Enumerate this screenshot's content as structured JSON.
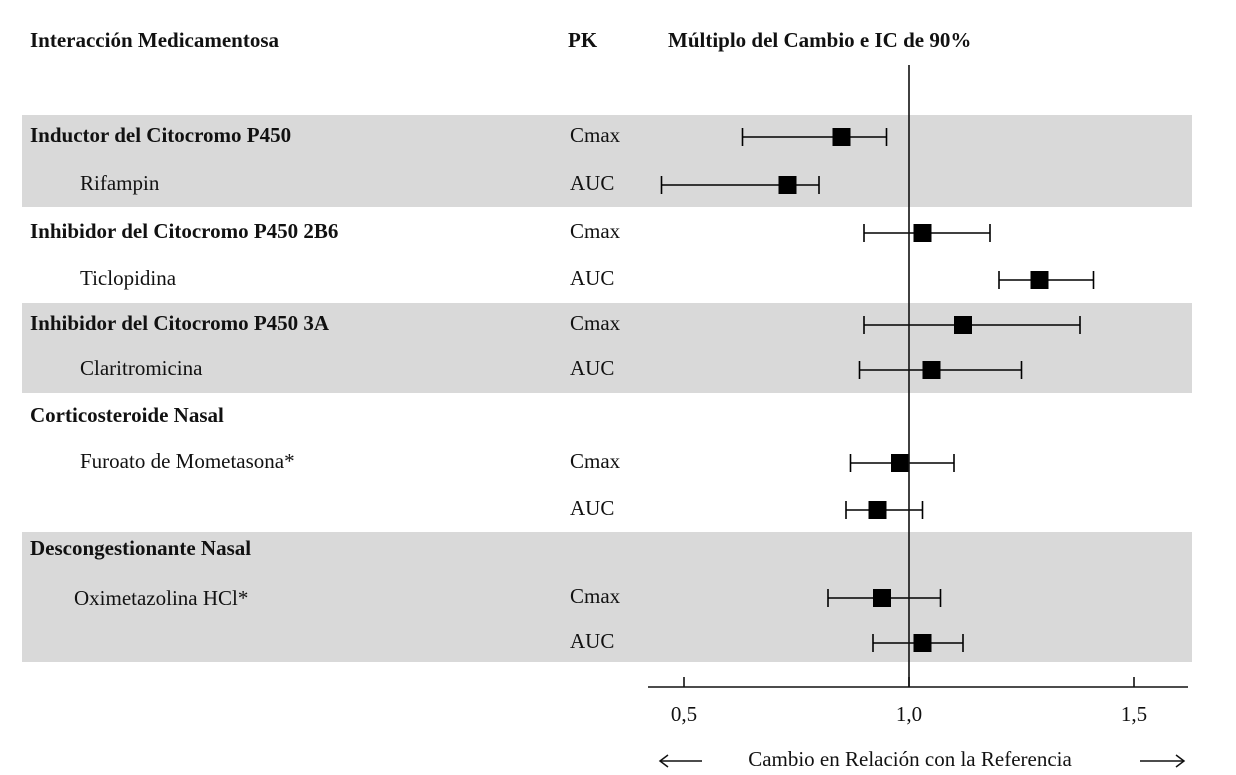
{
  "chart_data": {
    "type": "forest",
    "headers": [
      "Interacción Medicamentosa",
      "PK",
      "Múltiplo del Cambio e IC de 90%"
    ],
    "xlabel": "Cambio en Relación con la Referencia",
    "xlim": [
      0.42,
      1.62
    ],
    "xticks": [
      {
        "value": 0.5,
        "label": "0,5"
      },
      {
        "value": 1.0,
        "label": "1,0"
      },
      {
        "value": 1.5,
        "label": "1,5"
      }
    ],
    "reference_line": 1,
    "color": "#000000",
    "band_color": "#d9d9d9",
    "groups": [
      {
        "name": "Inductor del Citocromo P450",
        "drug": "Rifampin",
        "shaded": true,
        "pk": [
          "Cmax",
          "AUC"
        ],
        "values": [
          0.85,
          0.73
        ],
        "ci_low": [
          0.63,
          0.45
        ],
        "ci_high": [
          0.95,
          0.8
        ]
      },
      {
        "name": "Inhibidor del Citocromo P450 2B6",
        "drug": "Ticlopidina",
        "shaded": false,
        "pk": [
          "Cmax",
          "AUC"
        ],
        "values": [
          1.03,
          1.29
        ],
        "ci_low": [
          0.9,
          1.2
        ],
        "ci_high": [
          1.18,
          1.41
        ]
      },
      {
        "name": "Inhibidor del Citocromo P450 3A",
        "drug": "Claritromicina",
        "shaded": true,
        "pk": [
          "Cmax",
          "AUC"
        ],
        "values": [
          1.12,
          1.05
        ],
        "ci_low": [
          0.9,
          0.89
        ],
        "ci_high": [
          1.38,
          1.25
        ]
      },
      {
        "name": "Corticosteroide Nasal",
        "drug": "Furoato de Mometasona*",
        "shaded": false,
        "pk": [
          "Cmax",
          "AUC"
        ],
        "values": [
          0.98,
          0.93
        ],
        "ci_low": [
          0.87,
          0.86
        ],
        "ci_high": [
          1.1,
          1.03
        ]
      },
      {
        "name": "Descongestionante Nasal",
        "drug": "Oximetazolina HCl*",
        "shaded": true,
        "pk": [
          "Cmax",
          "AUC"
        ],
        "values": [
          0.94,
          1.03
        ],
        "ci_low": [
          0.82,
          0.92
        ],
        "ci_high": [
          1.07,
          1.12
        ]
      }
    ]
  }
}
